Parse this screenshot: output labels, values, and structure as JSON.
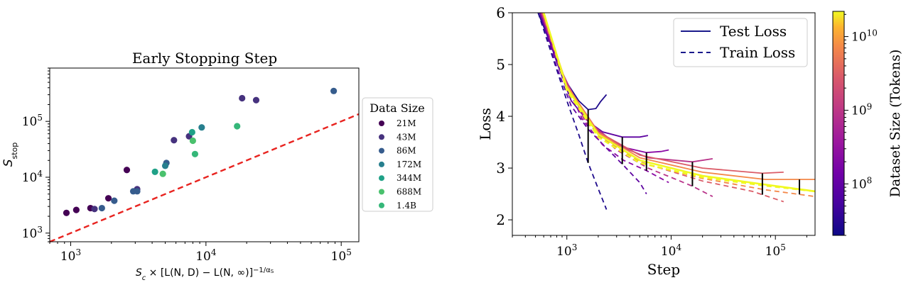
{
  "chart_data": [
    {
      "type": "scatter",
      "title": "Early Stopping Step",
      "xlabel_parts": {
        "sym": "S",
        "sub": "c",
        "mid": " × [L(N, D) − L(N, ∞)]",
        "sup_prefix": "−1/α",
        "sup_sub": "S"
      },
      "ylabel_parts": {
        "sym": "S",
        "sub": "stop"
      },
      "x_scale": "log",
      "y_scale": "log",
      "xlim": [
        700,
        135000
      ],
      "ylim": [
        700,
        900000
      ],
      "x_ticks": [
        1000,
        10000,
        100000
      ],
      "x_tick_labels": [
        {
          "base": "10",
          "exp": "3"
        },
        {
          "base": "10",
          "exp": "4"
        },
        {
          "base": "10",
          "exp": "5"
        }
      ],
      "y_ticks": [
        1000,
        10000,
        100000
      ],
      "y_tick_labels": [
        {
          "base": "10",
          "exp": "3"
        },
        {
          "base": "10",
          "exp": "4"
        },
        {
          "base": "10",
          "exp": "5"
        }
      ],
      "grid": false,
      "legend": {
        "title": "Data Size",
        "placement": "outside-right"
      },
      "reference_line": {
        "style": "dashed",
        "color": "#e8231f",
        "points": [
          [
            700,
            700
          ],
          [
            135000,
            135000
          ]
        ]
      },
      "series": [
        {
          "name": "21M",
          "color": "#440154",
          "points": [
            [
              930,
              2300
            ],
            [
              1100,
              2600
            ],
            [
              1400,
              2800
            ],
            [
              1900,
              4200
            ],
            [
              2600,
              13500
            ]
          ]
        },
        {
          "name": "43M",
          "color": "#46327e",
          "points": [
            [
              1500,
              2700
            ],
            [
              3100,
              6100
            ],
            [
              5800,
              46000
            ],
            [
              7500,
              54000
            ],
            [
              18500,
              260000
            ],
            [
              23500,
              240000
            ]
          ]
        },
        {
          "name": "86M",
          "color": "#365c8d",
          "points": [
            [
              1700,
              2800
            ],
            [
              2100,
              3800
            ],
            [
              2900,
              5600
            ],
            [
              3100,
              5600
            ],
            [
              5100,
              18000
            ],
            [
              88000,
              350000
            ]
          ]
        },
        {
          "name": "172M",
          "color": "#277f8e",
          "points": [
            [
              5000,
              16000
            ],
            [
              9300,
              78000
            ]
          ]
        },
        {
          "name": "344M",
          "color": "#1fa187",
          "points": [
            [
              4200,
              12500
            ],
            [
              7900,
              64000
            ]
          ]
        },
        {
          "name": "688M",
          "color": "#4ac16d",
          "points": [
            [
              4800,
              11500
            ],
            [
              8000,
              45000
            ]
          ]
        },
        {
          "name": "1.4B",
          "color": "#35b779",
          "points": [
            [
              8300,
              26000
            ],
            [
              17000,
              82000
            ]
          ]
        }
      ]
    },
    {
      "type": "line",
      "title": "",
      "xlabel": "Step",
      "ylabel": "Loss",
      "x_scale": "log",
      "y_scale": "linear",
      "xlim": [
        300,
        240000
      ],
      "ylim": [
        1.7,
        6.0
      ],
      "x_ticks": [
        1000,
        10000,
        100000
      ],
      "x_tick_labels": [
        {
          "base": "10",
          "exp": "3"
        },
        {
          "base": "10",
          "exp": "4"
        },
        {
          "base": "10",
          "exp": "5"
        }
      ],
      "y_ticks": [
        2,
        3,
        4,
        5,
        6
      ],
      "y_tick_labels": [
        "2",
        "3",
        "4",
        "5",
        "6"
      ],
      "grid": false,
      "legend": {
        "placement": "top-right",
        "entries": [
          {
            "label": "Test Loss",
            "style": "solid",
            "color": "#1a1a8c"
          },
          {
            "label": "Train Loss",
            "style": "dashed",
            "color": "#1a1a8c"
          }
        ]
      },
      "colorbar": {
        "label": "Dataset Size (Tokens)",
        "scale": "log",
        "range": [
          20000000,
          22000000000
        ],
        "colormap": "plasma",
        "tick_values": [
          100000000,
          1000000000,
          10000000000
        ],
        "tick_labels": [
          {
            "base": "10",
            "exp": "8"
          },
          {
            "base": "10",
            "exp": "9"
          },
          {
            "base": "10",
            "exp": "10"
          }
        ]
      },
      "series": [
        {
          "dataset_tokens": 21000000,
          "color": "#1e0a8c",
          "test": [
            [
              530,
              6.0
            ],
            [
              800,
              5.1
            ],
            [
              1000,
              4.65
            ],
            [
              1300,
              4.3
            ],
            [
              1600,
              4.13
            ],
            [
              1900,
              4.15
            ],
            [
              2100,
              4.28
            ],
            [
              2400,
              4.42
            ]
          ],
          "train": [
            [
              530,
              6.0
            ],
            [
              800,
              4.9
            ],
            [
              1000,
              4.3
            ],
            [
              1300,
              3.65
            ],
            [
              1600,
              3.1
            ],
            [
              2000,
              2.6
            ],
            [
              2400,
              2.2
            ]
          ],
          "stop_step": 1600
        },
        {
          "dataset_tokens": 43000000,
          "color": "#5d02a0",
          "test": [
            [
              550,
              6.0
            ],
            [
              800,
              5.05
            ],
            [
              1100,
              4.3
            ],
            [
              1600,
              3.9
            ],
            [
              2200,
              3.7
            ],
            [
              3400,
              3.6
            ],
            [
              5000,
              3.6
            ],
            [
              6000,
              3.63
            ]
          ],
          "train": [
            [
              550,
              6.0
            ],
            [
              800,
              4.95
            ],
            [
              1100,
              4.2
            ],
            [
              1600,
              3.75
            ],
            [
              2500,
              3.35
            ],
            [
              3500,
              3.05
            ],
            [
              5000,
              2.72
            ],
            [
              5800,
              2.5
            ]
          ],
          "stop_step": 3400
        },
        {
          "dataset_tokens": 86000000,
          "color": "#8b0aa5",
          "test": [
            [
              560,
              6.0
            ],
            [
              900,
              4.85
            ],
            [
              1400,
              4.05
            ],
            [
              2200,
              3.65
            ],
            [
              3500,
              3.4
            ],
            [
              5800,
              3.3
            ],
            [
              8000,
              3.32
            ],
            [
              9500,
              3.35
            ]
          ],
          "train": [
            [
              560,
              6.0
            ],
            [
              900,
              4.8
            ],
            [
              1400,
              3.95
            ],
            [
              2200,
              3.45
            ],
            [
              3500,
              3.15
            ],
            [
              5800,
              2.95
            ],
            [
              8000,
              2.8
            ],
            [
              9500,
              2.72
            ]
          ],
          "stop_step": 5800
        },
        {
          "dataset_tokens": 172000000,
          "color": "#b83289",
          "test": [
            [
              570,
              6.0
            ],
            [
              900,
              4.85
            ],
            [
              1500,
              3.95
            ],
            [
              3000,
              3.45
            ],
            [
              6000,
              3.2
            ],
            [
              16000,
              3.12
            ],
            [
              25000,
              3.18
            ]
          ],
          "train": [
            [
              570,
              6.0
            ],
            [
              900,
              4.8
            ],
            [
              1500,
              3.9
            ],
            [
              3000,
              3.35
            ],
            [
              6000,
              3.0
            ],
            [
              10000,
              2.82
            ],
            [
              16000,
              2.65
            ],
            [
              25000,
              2.45
            ]
          ],
          "stop_step": 16000
        },
        {
          "dataset_tokens": 344000000,
          "color": "#db5c68",
          "test": [
            [
              580,
              6.0
            ],
            [
              1000,
              4.6
            ],
            [
              2000,
              3.7
            ],
            [
              5000,
              3.25
            ],
            [
              20000,
              3.0
            ],
            [
              75000,
              2.9
            ],
            [
              120000,
              2.92
            ]
          ],
          "train": [
            [
              580,
              6.0
            ],
            [
              1000,
              4.55
            ],
            [
              2000,
              3.62
            ],
            [
              5000,
              3.12
            ],
            [
              20000,
              2.75
            ],
            [
              60000,
              2.55
            ],
            [
              120000,
              2.35
            ]
          ],
          "stop_step": 75000
        },
        {
          "dataset_tokens": 688000000,
          "color": "#f48849",
          "test": [
            [
              590,
              6.0
            ],
            [
              1000,
              4.6
            ],
            [
              2000,
              3.68
            ],
            [
              5000,
              3.2
            ],
            [
              20000,
              2.92
            ],
            [
              80000,
              2.78
            ],
            [
              240000,
              2.78
            ]
          ],
          "train": [
            [
              590,
              6.0
            ],
            [
              1000,
              4.55
            ],
            [
              2000,
              3.6
            ],
            [
              5000,
              3.1
            ],
            [
              20000,
              2.8
            ],
            [
              80000,
              2.58
            ],
            [
              240000,
              2.45
            ]
          ],
          "stop_step": 170000
        },
        {
          "dataset_tokens": 22000000000,
          "color": "#f0f921",
          "test": [
            [
              600,
              6.0
            ],
            [
              1000,
              4.55
            ],
            [
              2000,
              3.65
            ],
            [
              5000,
              3.15
            ],
            [
              20000,
              2.85
            ],
            [
              80000,
              2.68
            ],
            [
              240000,
              2.55
            ]
          ],
          "train": [
            [
              600,
              6.0
            ],
            [
              1000,
              4.5
            ],
            [
              2000,
              3.6
            ],
            [
              5000,
              3.1
            ],
            [
              20000,
              2.82
            ],
            [
              80000,
              2.66
            ],
            [
              240000,
              2.55
            ]
          ],
          "stop_step": null
        }
      ]
    }
  ]
}
